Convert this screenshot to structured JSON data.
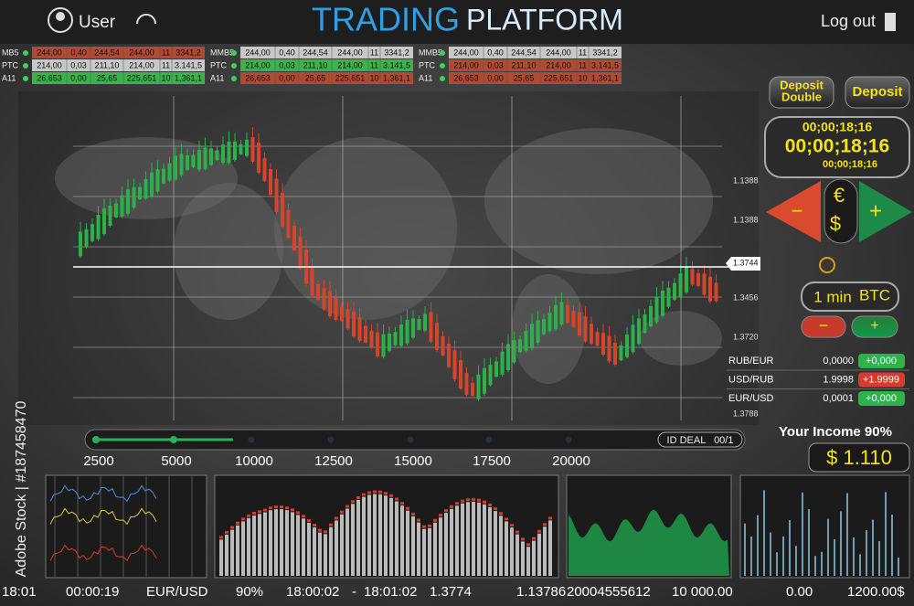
{
  "header": {
    "user": "User",
    "title_1": "TRADING",
    "title_2": "PLATFORM",
    "logout": "Log out"
  },
  "tickers": [
    {
      "rows": [
        {
          "label": "MB5",
          "cells": [
            "244,00",
            "0,40",
            "244,54",
            "244,00",
            "11",
            "3341,2"
          ]
        },
        {
          "label": "PTC",
          "cells": [
            "214,00",
            "0,03",
            "211,10",
            "214,00",
            "11",
            "3.141,5"
          ]
        },
        {
          "label": "A11",
          "cells": [
            "26,653",
            "0,00",
            "25,65",
            "225,651",
            "10",
            "1,361,1"
          ]
        }
      ]
    },
    {
      "rows": [
        {
          "label": "MMB5",
          "cells": [
            "244,00",
            "0,40",
            "244,54",
            "244,00",
            "11",
            "3341,2"
          ]
        },
        {
          "label": "PTC",
          "cells": [
            "214,00",
            "0,03",
            "211,10",
            "214,00",
            "11",
            "3.141,5"
          ]
        },
        {
          "label": "A11",
          "cells": [
            "26,653",
            "0,00",
            "25,65",
            "225,651",
            "10",
            "1,361,1"
          ]
        }
      ]
    },
    {
      "rows": [
        {
          "label": "MMB5",
          "cells": [
            "244,00",
            "0,40",
            "244,54",
            "244,00",
            "11",
            "3341,2"
          ]
        },
        {
          "label": "PTC",
          "cells": [
            "214,00",
            "0,03",
            "211,10",
            "214,00",
            "11",
            "3.141,5"
          ]
        },
        {
          "label": "A11",
          "cells": [
            "26,653",
            "0,00",
            "25,65",
            "225,651",
            "10",
            "1,361,1"
          ]
        }
      ]
    }
  ],
  "chart": {
    "price_labels": [
      "1.1388",
      "1.1388",
      "1.3744",
      "1.3456",
      "1.3720",
      "1.3788"
    ],
    "slider_labels": [
      "2500",
      "5000",
      "10000",
      "12500",
      "15000",
      "17500",
      "20000"
    ],
    "id_deal": "ID DEAL   00/1"
  },
  "side": {
    "deposit_double": [
      "Deposit",
      "Double"
    ],
    "deposit": "Deposit",
    "timers": [
      "00;00;18;16",
      "00;00;18;16",
      "00;00;18;16"
    ],
    "currency": [
      "€",
      "$"
    ],
    "minus": "−",
    "plus": "+",
    "period": "1 min",
    "asset": "BTC",
    "rates": [
      {
        "pair": "RUB/EUR",
        "value": "0,0000",
        "change": "+0,000"
      },
      {
        "pair": "USD/RUB",
        "value": "1.9998",
        "change": "+1.9999"
      },
      {
        "pair": "EUR/USD",
        "value": "0,0001",
        "change": "+0,000"
      }
    ],
    "income_label": "Your Income 90%",
    "income": "$ 1.110"
  },
  "footer": [
    "18:01",
    "00:00:19",
    "EUR/USD",
    "90%",
    "18:00:02",
    "-",
    "18:01:02",
    "1.3774",
    "1.13786",
    "20004555612",
    "10 000.00",
    "0.00",
    "1200.00$"
  ],
  "watermark": "Adobe Stock | #187458470"
}
